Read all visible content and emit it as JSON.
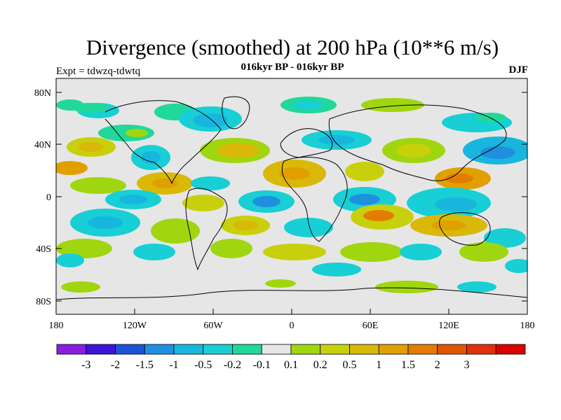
{
  "title": "Divergence (smoothed) at 200 hPa (10**6 m/s)",
  "subtitle": "016kyr BP - 016kyr BP",
  "experiment": "Expt = tdwzq-tdwtq",
  "season": "DJF",
  "axes": {
    "lat_labels": [
      "80N",
      "40N",
      "0",
      "40S",
      "80S"
    ],
    "lon_labels": [
      "180",
      "120W",
      "60W",
      "0",
      "60E",
      "120E",
      "180"
    ]
  },
  "colorbar": {
    "colors": [
      "#8a1de0",
      "#3d14d8",
      "#1e52d6",
      "#1f8fe0",
      "#18b6df",
      "#17cfd5",
      "#20d89a",
      "#e6e6e6",
      "#9fd60f",
      "#c8d00c",
      "#d9b808",
      "#e0a000",
      "#e27d00",
      "#e05600",
      "#e03010",
      "#dc0000"
    ],
    "labels": [
      "-3",
      "-2",
      "-1.5",
      "-1",
      "-0.5",
      "-0.2",
      "-0.1",
      "0.1",
      "0.2",
      "0.5",
      "1",
      "1.5",
      "2",
      "3"
    ]
  }
}
